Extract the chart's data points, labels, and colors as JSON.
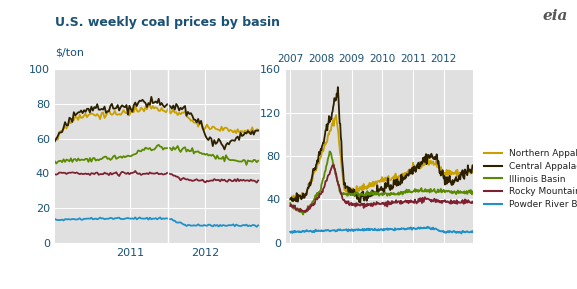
{
  "title": "U.S. weekly coal prices by basin",
  "ylabel_left": "$/ton",
  "title_color": "#1a5276",
  "background_color": "#ffffff",
  "plot_bg_color": "#e0e0e0",
  "colors": {
    "northern_app": "#c8a000",
    "central_app": "#2d2000",
    "illinois": "#5a8a00",
    "rocky_mtn": "#7d2030",
    "powder_river": "#2090c8"
  },
  "legend_labels": [
    "Northern Appalachian Basin",
    "Central Appalachian Basin",
    "Illinois Basin",
    "Rocky Mountain Basin",
    "Powder River Basin"
  ],
  "left_ylim": [
    0,
    100
  ],
  "left_yticks": [
    0,
    20,
    40,
    60,
    80,
    100
  ],
  "right_ylim": [
    0,
    160
  ],
  "right_yticks": [
    0,
    40,
    80,
    120,
    160
  ],
  "right_xticks": [
    2007,
    2008,
    2009,
    2010,
    2011,
    2012
  ],
  "left_xticks": [
    2011,
    2012
  ],
  "tick_color": "#1a5276"
}
